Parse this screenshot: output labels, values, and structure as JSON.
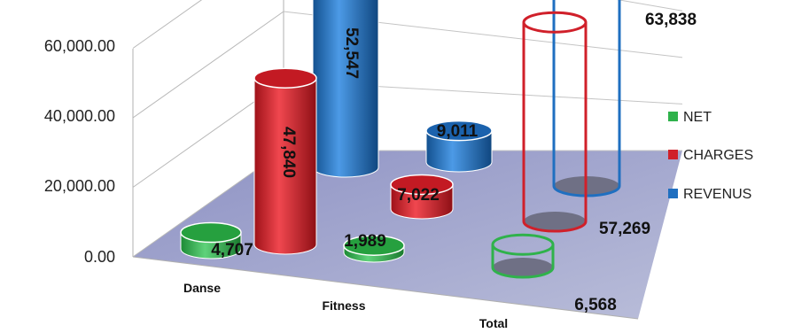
{
  "chart_data": {
    "type": "bar",
    "style": "3d-cylinder",
    "categories": [
      "Danse",
      "Fitness",
      "Total"
    ],
    "series": [
      {
        "name": "NET",
        "values": [
          4707,
          1989,
          6568
        ],
        "color": "#2fb24b",
        "labels": [
          "4,707",
          "1,989",
          "6,568"
        ]
      },
      {
        "name": "CHARGES",
        "values": [
          47840,
          7022,
          57269
        ],
        "color": "#d0202a",
        "labels": [
          "47,840",
          "7,022",
          "57,269"
        ]
      },
      {
        "name": "REVENUS",
        "values": [
          52547,
          9011,
          63838
        ],
        "color": "#1f6fc0",
        "labels": [
          "52,547",
          "9,011",
          "63,838"
        ]
      }
    ],
    "y_ticks": [
      "0.00",
      "20,000.00",
      "40,000.00",
      "60,000.00"
    ],
    "ylim": [
      0,
      60000
    ],
    "grid": true,
    "legend_position": "right",
    "floor_color": "#9a9ec9"
  }
}
